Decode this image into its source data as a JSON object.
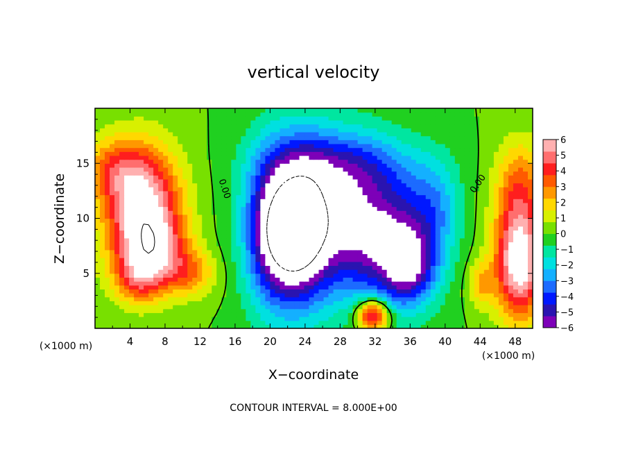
{
  "chart_data": {
    "type": "heatmap",
    "title": "vertical velocity",
    "xlabel": "X−coordinate",
    "ylabel": "Z−coordinate",
    "x_unit_left": "(×1000 m)",
    "x_unit_right": "(×1000 m)",
    "xlim": [
      0,
      50
    ],
    "ylim": [
      0,
      20
    ],
    "x_ticks": [
      4,
      8,
      12,
      16,
      20,
      24,
      28,
      32,
      36,
      40,
      44,
      48
    ],
    "x_tick_labels": [
      "4",
      "8",
      "12",
      "16",
      "20",
      "24",
      "28",
      "32",
      "36",
      "40",
      "44",
      "48"
    ],
    "y_ticks": [
      5,
      10,
      15
    ],
    "y_tick_labels": [
      "5",
      "10",
      "15"
    ],
    "colorbar": {
      "min": -6,
      "max": 6,
      "ticks": [
        6,
        5,
        4,
        3,
        2,
        1,
        0,
        -1,
        -2,
        -3,
        -4,
        -5,
        -6
      ],
      "labels": [
        "6",
        "5",
        "4",
        "3",
        "2",
        "1",
        "0",
        "−1",
        "−2",
        "−3",
        "−4",
        "−5",
        "−6"
      ]
    },
    "contour_labels": [
      {
        "text": "0.00",
        "x": 14.5,
        "y": 12.6
      },
      {
        "text": "0.00",
        "x": 44.0,
        "y": 13.0
      }
    ],
    "footer": "CONTOUR INTERVAL = 8.000E+00",
    "features": [
      {
        "x": 5.5,
        "z": 10.5,
        "w": 7,
        "sx": 3.0,
        "sz": 4.0
      },
      {
        "x": 7.0,
        "z": 7.0,
        "w": 3,
        "sx": 2.5,
        "sz": 2.0
      },
      {
        "x": 2.0,
        "z": 14.5,
        "w": 2.5,
        "sx": 2.5,
        "sz": 2.0
      },
      {
        "x": 48.5,
        "z": 6.0,
        "w": 7,
        "sx": 2.0,
        "sz": 3.5
      },
      {
        "x": 48.5,
        "z": 13.0,
        "w": 3,
        "sx": 2.0,
        "sz": 3.0
      },
      {
        "x": 5.0,
        "z": 4.5,
        "w": 2.5,
        "sx": 2.0,
        "sz": 1.5
      },
      {
        "x": 11.0,
        "z": 5.0,
        "w": 2.5,
        "sx": 2.0,
        "sz": 1.5
      },
      {
        "x": 44.0,
        "z": 4.0,
        "w": 2,
        "sx": 1.0,
        "sz": 1.5
      },
      {
        "x": 31.8,
        "z": 1.2,
        "w": 6,
        "sx": 1.3,
        "sz": 1.0
      },
      {
        "x": 26.5,
        "z": 10.5,
        "w": -4,
        "sx": 5.0,
        "sz": 5.0
      },
      {
        "x": 23.5,
        "z": 9.0,
        "w": -5,
        "sx": 2.5,
        "sz": 5.0
      },
      {
        "x": 20.0,
        "z": 9.0,
        "w": -4,
        "sx": 2.2,
        "sz": 5.0
      },
      {
        "x": 22.5,
        "z": 8.5,
        "w": -3,
        "sx": 2.0,
        "sz": 2.5
      },
      {
        "x": 35.0,
        "z": 7.5,
        "w": -4.5,
        "sx": 3.0,
        "sz": 4.0
      },
      {
        "x": 36.0,
        "z": 5.5,
        "w": -3,
        "sx": 2.0,
        "sz": 2.0
      },
      {
        "x": 30.0,
        "z": 9.0,
        "w": -2.5,
        "sx": 3.0,
        "sz": 4.0
      },
      {
        "x": 39.0,
        "z": 11.0,
        "w": -2,
        "sx": 2.0,
        "sz": 3.0
      },
      {
        "x": 29.0,
        "z": 15.0,
        "w": -2,
        "sx": 6.0,
        "sz": 2.0
      }
    ]
  }
}
